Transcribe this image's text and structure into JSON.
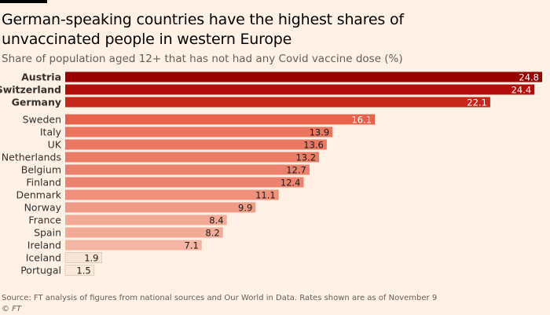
{
  "title": "German-speaking countries have the highest shares of unvaccinated people in western Europe",
  "subtitle": "Share of population aged 12+ that has not had any Covid vaccine dose (%)",
  "source": "Source: FT analysis of figures from national sources and Our World in Data. Rates shown are as of November 9",
  "credit": "© FT",
  "colors": {
    "background": "#fff1e5",
    "highlight": [
      "#990000",
      "#b30c0c",
      "#c8261a"
    ],
    "gradient_high": "#e8614a",
    "gradient_low": "#fbe9d8"
  },
  "chart_data": {
    "type": "bar",
    "orientation": "horizontal",
    "title": "German-speaking countries have the highest shares of unvaccinated people in western Europe",
    "subtitle": "Share of population aged 12+ that has not had any Covid vaccine dose (%)",
    "xlim": [
      0,
      24.8
    ],
    "grid": false,
    "categories": [
      "Austria",
      "Switzerland",
      "Germany",
      "Sweden",
      "Italy",
      "UK",
      "Netherlands",
      "Belgium",
      "Finland",
      "Denmark",
      "Norway",
      "France",
      "Spain",
      "Ireland",
      "Iceland",
      "Portugal"
    ],
    "values": [
      24.8,
      24.4,
      22.1,
      16.1,
      13.9,
      13.6,
      13.2,
      12.7,
      12.4,
      11.1,
      9.9,
      8.4,
      8.2,
      7.1,
      1.9,
      1.5
    ],
    "value_labels": [
      "24.8",
      "24.4",
      "22.1",
      "16.1",
      "13.9",
      "13.6",
      "13.2",
      "12.7",
      "12.4",
      "11.1",
      "9.9",
      "8.4",
      "8.2",
      "7.1",
      "1.9",
      "1.5"
    ],
    "highlighted": [
      "Austria",
      "Switzerland",
      "Germany"
    ]
  }
}
